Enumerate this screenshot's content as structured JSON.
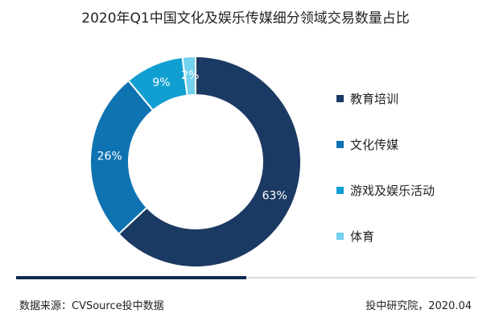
{
  "chart_data": {
    "type": "pie",
    "donut": true,
    "title": "2020年Q1中国文化及娱乐传媒细分领域交易数量占比",
    "categories": [
      "教育培训",
      "文化传媒",
      "游戏及娱乐活动",
      "体育"
    ],
    "values": [
      63,
      26,
      9,
      2
    ],
    "value_labels": [
      "63%",
      "26%",
      "9%",
      "2%"
    ],
    "colors": [
      "#1b3a63",
      "#0f73b2",
      "#119fd1",
      "#74d1ee"
    ],
    "legend_position": "right"
  },
  "footer": {
    "source": "数据来源：CVSource投中数据",
    "credit": "投中研究院，2020.04"
  }
}
